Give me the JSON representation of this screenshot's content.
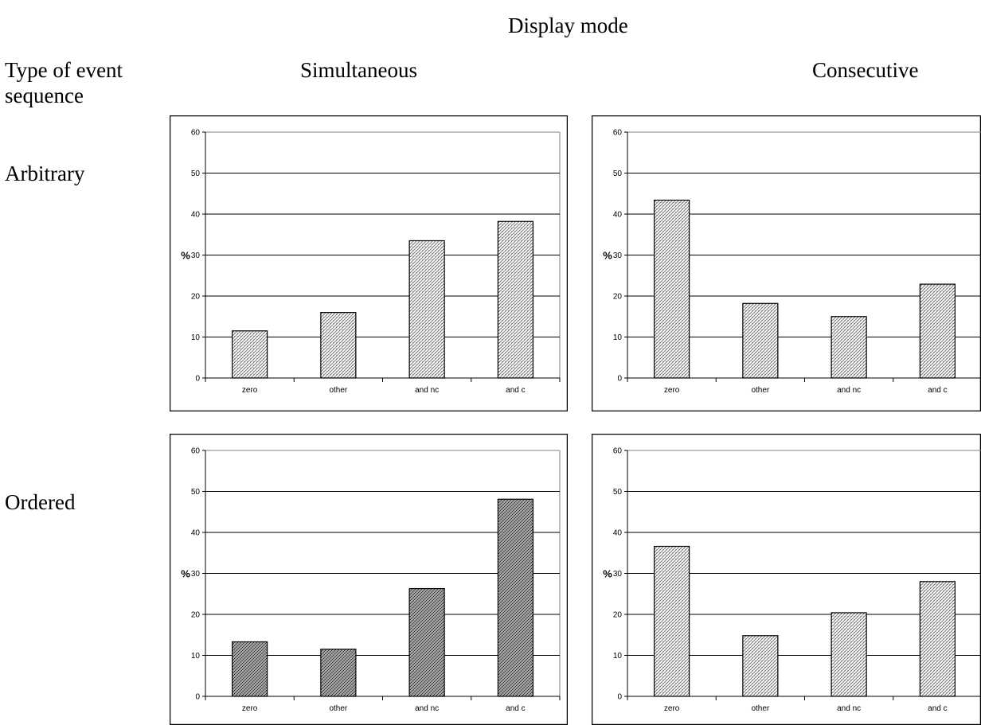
{
  "labels": {
    "display_mode": "Display mode",
    "simultaneous": "Simultaneous",
    "consecutive": "Consecutive",
    "type_of_event_sequence": "Type of event sequence",
    "arbitrary": "Arbitrary",
    "ordered": "Ordered"
  },
  "chart_data": [
    {
      "type": "bar",
      "categories": [
        "zero",
        "other",
        "and nc",
        "and c"
      ],
      "values": [
        11.5,
        16,
        33.5,
        38.2
      ],
      "ylabel": "%",
      "ylim": [
        0,
        60
      ],
      "yticks": [
        "0",
        "10",
        "20",
        "30",
        "40",
        "50",
        "60"
      ],
      "grid": true,
      "pattern": "fine"
    },
    {
      "type": "bar",
      "categories": [
        "zero",
        "other",
        "and nc",
        "and c"
      ],
      "values": [
        43.4,
        18.2,
        15,
        22.9
      ],
      "ylabel": "%",
      "ylim": [
        0,
        60
      ],
      "yticks": [
        "0",
        "10",
        "20",
        "30",
        "40",
        "50",
        "60"
      ],
      "grid": true,
      "pattern": "fine"
    },
    {
      "type": "bar",
      "categories": [
        "zero",
        "other",
        "and nc",
        "and c"
      ],
      "values": [
        13.3,
        11.5,
        26.3,
        48.1
      ],
      "ylabel": "%",
      "ylim": [
        0,
        60
      ],
      "yticks": [
        "0",
        "10",
        "20",
        "30",
        "40",
        "50",
        "60"
      ],
      "grid": true,
      "pattern": "hatch"
    },
    {
      "type": "bar",
      "categories": [
        "zero",
        "other",
        "and nc",
        "and c"
      ],
      "values": [
        36.6,
        14.8,
        20.4,
        28
      ],
      "ylabel": "%",
      "ylim": [
        0,
        60
      ],
      "yticks": [
        "0",
        "10",
        "20",
        "30",
        "40",
        "50",
        "60"
      ],
      "grid": true,
      "pattern": "fine"
    }
  ]
}
